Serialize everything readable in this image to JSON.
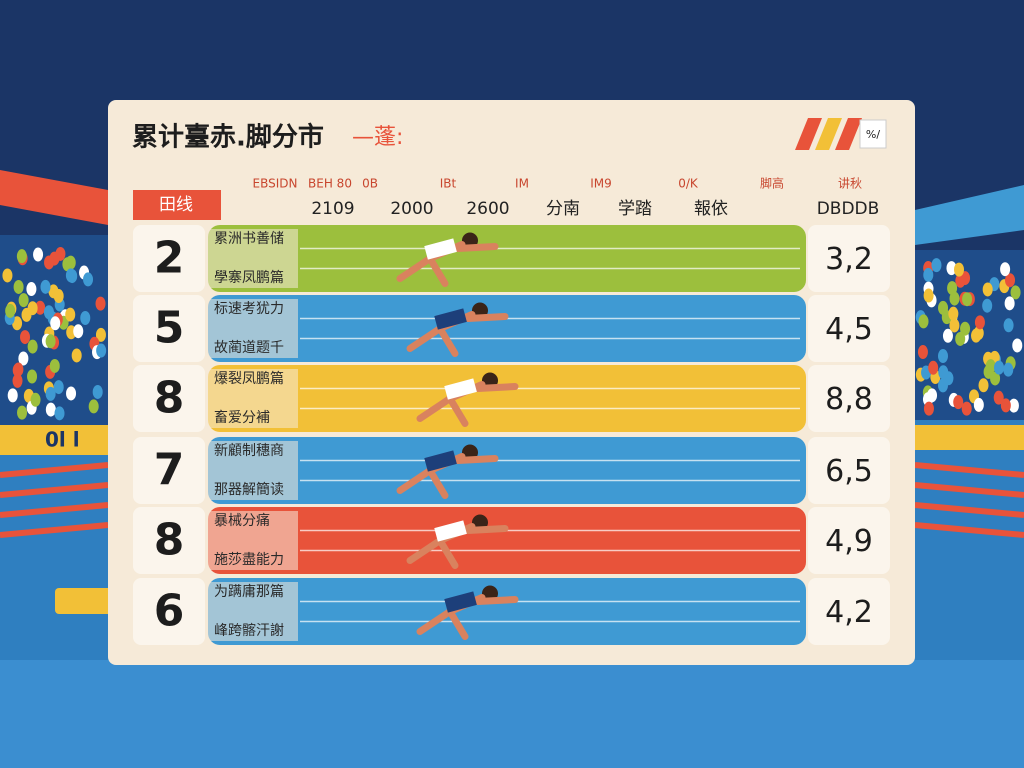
{
  "header": {
    "title": "累计臺赤.脚分市",
    "title_suffix": "—蓬:",
    "badge": "%/",
    "tab": "田线"
  },
  "columns": {
    "top": [
      "EBSIDN",
      "BEH 80",
      "0B",
      "IBt",
      "IM",
      "IM9",
      "0/K",
      "脚高",
      "讲秋"
    ],
    "bottom": [
      "2109",
      "2000",
      "2600",
      "分南",
      "学踏",
      "報依",
      "DBDDB"
    ]
  },
  "rows": [
    {
      "rank": 2,
      "label_top": "累洲书善储",
      "label_bottom": "學寨凤鹏篇",
      "score": "3,2",
      "color": "#9cbf3d"
    },
    {
      "rank": 5,
      "label_top": "标速考犹力",
      "label_bottom": "故蔺道题千",
      "score": "4,5",
      "color": "#3f9ad3"
    },
    {
      "rank": 8,
      "label_top": "爆裂凤鹏篇",
      "label_bottom": "畜爱分補",
      "score": "8,8",
      "color": "#f2c037"
    },
    {
      "rank": 7,
      "label_top": "新顧制穗商",
      "label_bottom": "那器解簡读",
      "score": "6,5",
      "color": "#3f9ad3"
    },
    {
      "rank": 8,
      "label_top": "暴械分痛",
      "label_bottom": "施莎盡能力",
      "score": "4,9",
      "color": "#e8533a"
    },
    {
      "rank": 6,
      "label_top": "为蹒庸那篇",
      "label_bottom": "峰跨髂汗謝",
      "score": "4,2",
      "color": "#3f9ad3"
    }
  ],
  "side_sign": "0l l"
}
